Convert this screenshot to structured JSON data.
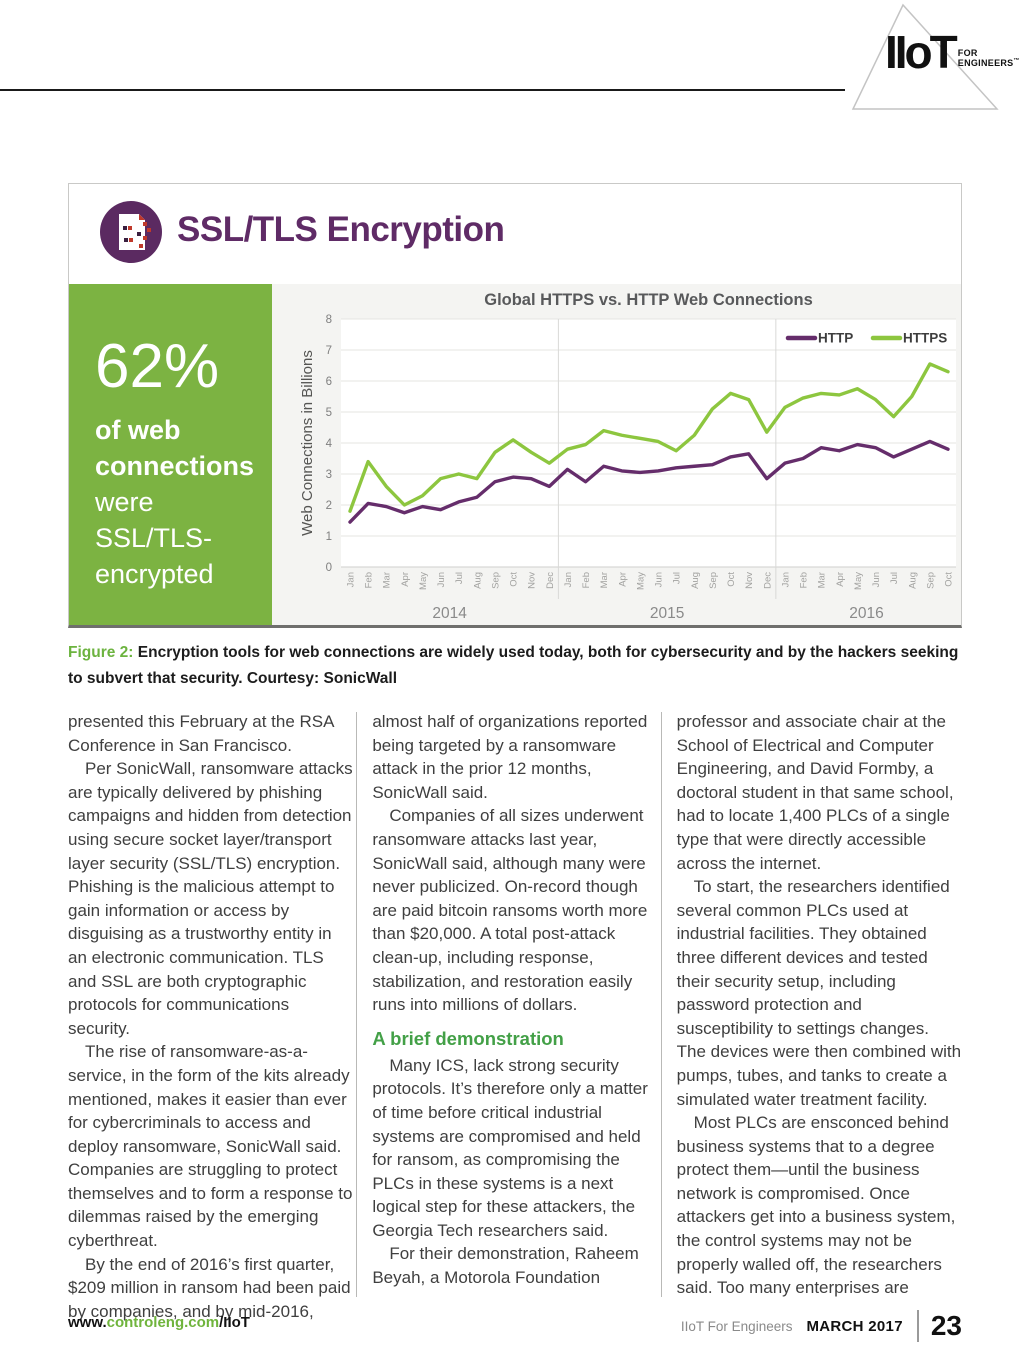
{
  "header": {
    "logo_main": "IIoT",
    "logo_sub1": "FOR",
    "logo_sub2": "ENGINEERS",
    "logo_tm": "™"
  },
  "figure": {
    "title": "SSL/TLS Encryption",
    "stat_value": "62%",
    "stat_bold_lines": [
      "of web",
      "connections"
    ],
    "stat_normal_lines": [
      "were",
      "SSL/TLS-",
      "encrypted"
    ]
  },
  "caption": {
    "label": "Figure 2:",
    "text": "Encryption tools for web connections are widely used today, both for cybersecurity and by the hackers seeking to subvert that security. Courtesy: SonicWall"
  },
  "chart_data": {
    "type": "line",
    "title": "Global HTTPS vs. HTTP Web Connections",
    "ylabel": "Web Connections in Billions",
    "ylim": [
      0,
      8
    ],
    "yticks": [
      0,
      1,
      2,
      3,
      4,
      5,
      6,
      7,
      8
    ],
    "grid": "horizontal, with vertical year separators",
    "legend_position": "top-right",
    "x_months": [
      "Jan",
      "Feb",
      "Mar",
      "Apr",
      "May",
      "Jun",
      "Jul",
      "Aug",
      "Sep",
      "Oct",
      "Nov",
      "Dec",
      "Jan",
      "Feb",
      "Mar",
      "Apr",
      "May",
      "Jun",
      "Jul",
      "Aug",
      "Sep",
      "Oct",
      "Nov",
      "Dec",
      "Jan",
      "Feb",
      "Mar",
      "Apr",
      "May",
      "Jun",
      "Jul",
      "Aug",
      "Sep",
      "Oct"
    ],
    "year_groups": [
      {
        "label": "2014",
        "count": 12
      },
      {
        "label": "2015",
        "count": 12
      },
      {
        "label": "2016",
        "count": 10
      }
    ],
    "series": [
      {
        "name": "HTTP",
        "color": "#652d6b",
        "values": [
          1.45,
          2.05,
          1.95,
          1.75,
          1.95,
          1.85,
          2.1,
          2.25,
          2.75,
          2.9,
          2.85,
          2.6,
          3.15,
          2.75,
          3.25,
          3.1,
          3.05,
          3.1,
          3.2,
          3.25,
          3.3,
          3.55,
          3.65,
          2.85,
          3.35,
          3.5,
          3.85,
          3.75,
          3.95,
          3.85,
          3.55,
          3.8,
          4.05,
          3.8
        ]
      },
      {
        "name": "HTTPS",
        "color": "#8dc63f",
        "values": [
          1.8,
          3.4,
          2.6,
          2.0,
          2.3,
          2.85,
          3.0,
          2.85,
          3.7,
          4.1,
          3.7,
          3.35,
          3.8,
          3.95,
          4.4,
          4.25,
          4.15,
          4.05,
          3.75,
          4.25,
          5.1,
          5.6,
          5.4,
          4.35,
          5.15,
          5.45,
          5.6,
          5.55,
          5.75,
          5.4,
          4.85,
          5.5,
          6.55,
          6.3
        ]
      }
    ]
  },
  "article": {
    "columns": [
      {
        "blocks": [
          {
            "text": "presented this February at the RSA Conference in San Francisco.",
            "indent": false
          },
          {
            "text": "Per SonicWall, ransomware attacks are typically delivered by phishing campaigns and hidden from detection using secure socket layer/transport layer security (SSL/TLS) encryption. Phishing is the malicious attempt to gain information or access by disguising as a trustworthy entity in an electronic communication. TLS and SSL are both cryptographic protocols for communications security.",
            "indent": true
          },
          {
            "text": "The rise of ransomware-as-a-service, in the form of the kits already mentioned, makes it easier than ever for cybercriminals to access and deploy ransomware, SonicWall said. Companies are struggling to protect themselves and to form a response to dilemmas raised by the emerging cyberthreat.",
            "indent": true
          },
          {
            "text": "By the end of 2016’s first quarter, $209 million in ransom had been paid by companies, and by mid-2016,",
            "indent": true
          }
        ]
      },
      {
        "blocks": [
          {
            "text": "almost half of organizations reported being targeted by a ransomware attack in the prior 12 months, SonicWall said.",
            "indent": false
          },
          {
            "text": "Companies of all sizes underwent ransomware attacks last year, SonicWall said, although many were never publicized. On-record though are paid bitcoin ransoms worth more than $20,000. A total post-attack clean-up, including response, stabilization, and restoration easily runs into millions of dollars.",
            "indent": true
          },
          {
            "heading": "A brief demonstration"
          },
          {
            "text": "Many ICS, lack strong security protocols. It’s therefore only a matter of time before critical industrial systems are compromised and held for ransom, as compromising the PLCs in these systems is a next logical step for these attackers, the Georgia Tech researchers said.",
            "indent": true
          },
          {
            "text": "For their demonstration, Raheem Beyah, a Motorola Foundation",
            "indent": true
          }
        ]
      },
      {
        "blocks": [
          {
            "text": "professor and associate chair at the School of Electrical and Computer Engineering, and David Formby, a doctoral student in that same school, had to locate 1,400 PLCs of a single type that were directly accessible across the internet.",
            "indent": false
          },
          {
            "text": "To start, the researchers identified several common PLCs used at industrial facilities. They obtained three different devices and tested their security setup, including password protection and susceptibility to settings changes. The devices were then combined with pumps, tubes, and tanks to create a simulated water treatment facility.",
            "indent": true
          },
          {
            "text": "Most PLCs are ensconced behind business systems that to a degree protect them—until the business network is compromised. Once attackers get into a business system, the control systems may not be properly walled off, the researchers said. Too many enterprises are",
            "indent": true
          }
        ]
      }
    ]
  },
  "footer": {
    "url_prefix": "www.",
    "url_domain": "controleng.com",
    "url_suffix": "/IIoT",
    "publication": "IIoT For Engineers",
    "issue": "MARCH 2017",
    "page_number": "23"
  },
  "colors": {
    "accent_green": "#7cb342",
    "line_green": "#8dc63f",
    "line_purple": "#652d6b",
    "title_purple": "#5f2b66",
    "caption_green": "#6cb33f",
    "heading_green": "#43a047"
  }
}
